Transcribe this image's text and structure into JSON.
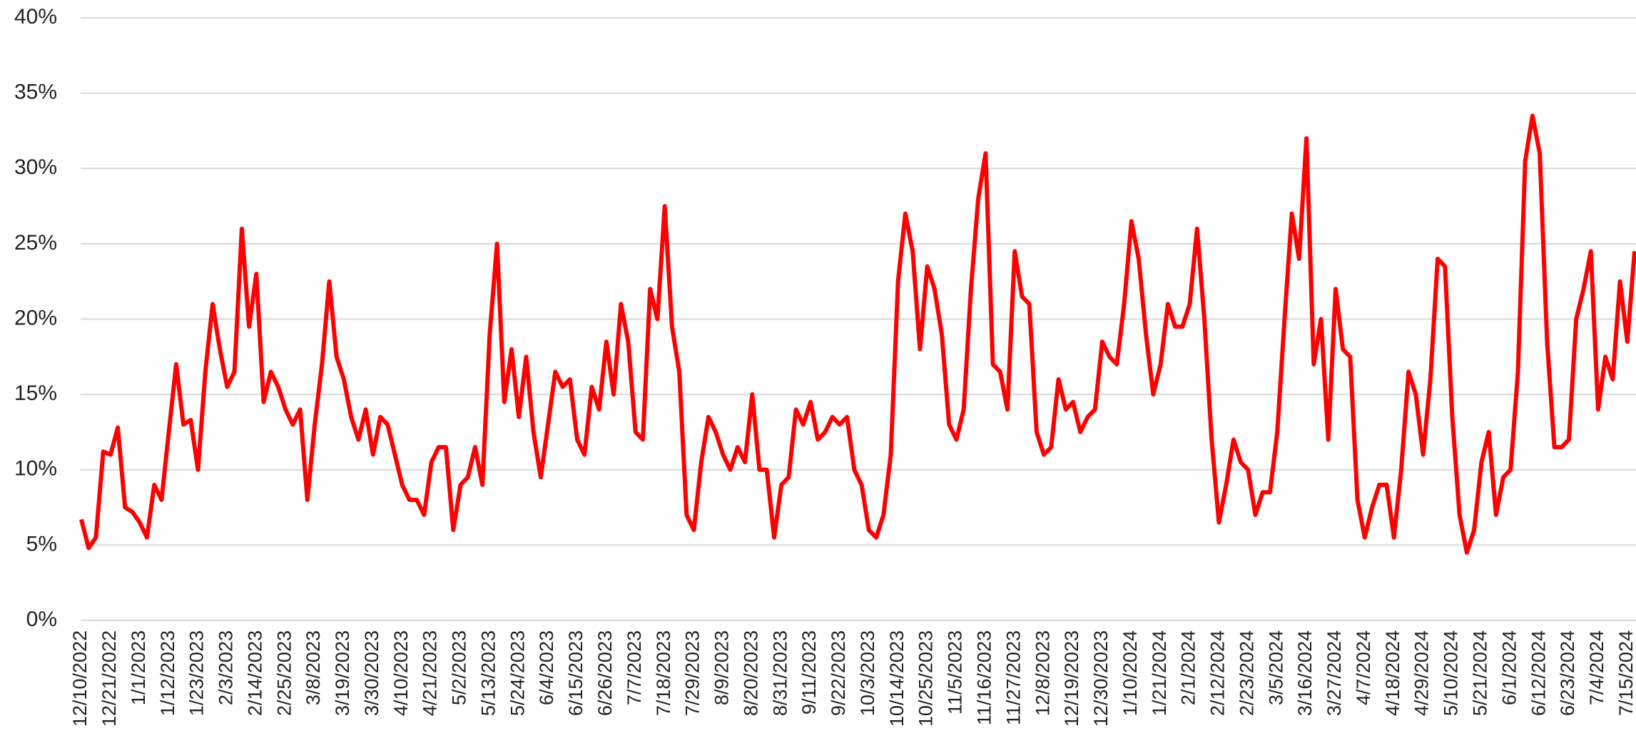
{
  "chart_data": {
    "type": "line",
    "color": "#ff0000",
    "grid": true,
    "ylim": [
      0,
      40
    ],
    "yticks": [
      {
        "value": 0,
        "label": "0%"
      },
      {
        "value": 5,
        "label": "5%"
      },
      {
        "value": 10,
        "label": "10%"
      },
      {
        "value": 15,
        "label": "15%"
      },
      {
        "value": 20,
        "label": "20%"
      },
      {
        "value": 25,
        "label": "25%"
      },
      {
        "value": 30,
        "label": "30%"
      },
      {
        "value": 35,
        "label": "35%"
      },
      {
        "value": 40,
        "label": "40%"
      }
    ],
    "categories": [
      "12/10/2022",
      null,
      null,
      null,
      "12/21/2022",
      null,
      null,
      null,
      "1/1/2023",
      null,
      null,
      null,
      "1/12/2023",
      null,
      null,
      null,
      "1/23/2023",
      null,
      null,
      null,
      "2/3/2023",
      null,
      null,
      null,
      "2/14/2023",
      null,
      null,
      null,
      "2/25/2023",
      null,
      null,
      null,
      "3/8/2023",
      null,
      null,
      null,
      "3/19/2023",
      null,
      null,
      null,
      "3/30/2023",
      null,
      null,
      null,
      "4/10/2023",
      null,
      null,
      null,
      "4/21/2023",
      null,
      null,
      null,
      "5/2/2023",
      null,
      null,
      null,
      "5/13/2023",
      null,
      null,
      null,
      "5/24/2023",
      null,
      null,
      null,
      "6/4/2023",
      null,
      null,
      null,
      "6/15/2023",
      null,
      null,
      null,
      "6/26/2023",
      null,
      null,
      null,
      "7/7/2023",
      null,
      null,
      null,
      "7/18/2023",
      null,
      null,
      null,
      "7/29/2023",
      null,
      null,
      null,
      "8/9/2023",
      null,
      null,
      null,
      "8/20/2023",
      null,
      null,
      null,
      "8/31/2023",
      null,
      null,
      null,
      "9/11/2023",
      null,
      null,
      null,
      "9/22/2023",
      null,
      null,
      null,
      "10/3/2023",
      null,
      null,
      null,
      "10/14/2023",
      null,
      null,
      null,
      "10/25/2023",
      null,
      null,
      null,
      "11/5/2023",
      null,
      null,
      null,
      "11/16/2023",
      null,
      null,
      null,
      "11/27/2023",
      null,
      null,
      null,
      "12/8/2023",
      null,
      null,
      null,
      "12/19/2023",
      null,
      null,
      null,
      "12/30/2023",
      null,
      null,
      null,
      "1/10/2024",
      null,
      null,
      null,
      "1/21/2024",
      null,
      null,
      null,
      "2/1/2024",
      null,
      null,
      null,
      "2/12/2024",
      null,
      null,
      null,
      "2/23/2024",
      null,
      null,
      null,
      "3/5/2024",
      null,
      null,
      null,
      "3/16/2024",
      null,
      null,
      null,
      "3/27/2024",
      null,
      null,
      null,
      "4/7/2024",
      null,
      null,
      null,
      "4/18/2024",
      null,
      null,
      null,
      "4/29/2024",
      null,
      null,
      null,
      "5/10/2024",
      null,
      null,
      null,
      "5/21/2024",
      null,
      null,
      null,
      "6/1/2024",
      null,
      null,
      null,
      "6/12/2024",
      null,
      null,
      null,
      "6/23/2024",
      null,
      null,
      null,
      "7/4/2024",
      null,
      null,
      null,
      "7/15/2024",
      null
    ],
    "values": [
      6.7,
      4.8,
      5.5,
      11.2,
      11,
      12.8,
      7.5,
      7.2,
      6.5,
      5.5,
      9,
      8,
      12.5,
      17,
      13,
      13.3,
      10,
      16.5,
      21,
      18,
      15.5,
      16.5,
      26,
      19.5,
      23,
      14.5,
      16.5,
      15.5,
      14,
      13,
      14,
      8,
      13,
      17,
      22.5,
      17.5,
      16,
      13.5,
      12,
      14,
      11,
      13.5,
      13,
      11,
      9,
      8,
      8,
      7,
      10.5,
      11.5,
      11.5,
      6,
      9,
      9.5,
      11.5,
      9,
      19,
      25,
      14.5,
      18,
      13.5,
      17.5,
      12.5,
      9.5,
      13,
      16.5,
      15.5,
      16,
      12,
      11,
      15.5,
      14,
      18.5,
      15,
      21,
      18.5,
      12.5,
      12,
      22,
      20,
      27.5,
      19.5,
      16.5,
      7,
      6,
      10.5,
      13.5,
      12.5,
      11,
      10,
      11.5,
      10.5,
      15,
      10,
      10,
      5.5,
      9,
      9.5,
      14,
      13,
      14.5,
      12,
      12.5,
      13.5,
      13,
      13.5,
      10,
      9,
      6,
      5.5,
      7,
      11,
      22.5,
      27,
      24.5,
      18,
      23.5,
      22,
      19,
      13,
      12,
      14,
      22,
      28,
      31,
      17,
      16.5,
      14,
      24.5,
      21.5,
      21,
      12.5,
      11,
      11.5,
      16,
      14,
      14.5,
      12.5,
      13.5,
      14,
      18.5,
      17.5,
      17,
      21,
      26.5,
      24,
      19,
      15,
      17,
      21,
      19.5,
      19.5,
      21,
      26,
      20,
      12,
      6.5,
      9,
      12,
      10.5,
      10,
      7,
      8.5,
      8.5,
      12.5,
      20,
      27,
      24,
      32,
      17,
      20,
      12,
      22,
      18,
      17.5,
      8,
      5.5,
      7.5,
      9,
      9,
      5.5,
      10,
      16.5,
      15,
      11,
      16,
      24,
      23.5,
      13.5,
      7,
      4.5,
      6,
      10.5,
      12.5,
      7,
      9.5,
      10,
      16.5,
      30.5,
      33.5,
      31,
      18.5,
      11.5,
      11.5,
      12,
      20,
      22,
      24.5,
      14,
      17.5,
      16,
      22.5,
      18.5,
      24.5
    ]
  }
}
